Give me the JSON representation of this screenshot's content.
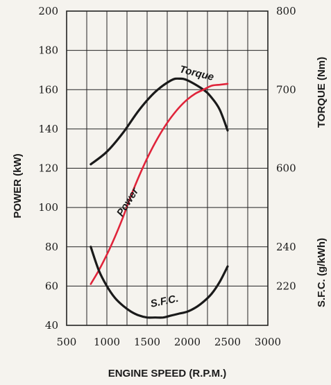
{
  "chart_data": {
    "type": "line",
    "xlabel": "ENGINE SPEED (R.P.M.)",
    "x_ticks": [
      "500",
      "1000",
      "1500",
      "2000",
      "2500",
      "3000"
    ],
    "xlim": [
      500,
      3000
    ],
    "y_left": {
      "label": "POWER (kW)",
      "ticks": [
        "40",
        "60",
        "80",
        "100",
        "120",
        "140",
        "160",
        "180",
        "200"
      ],
      "lim": [
        40,
        200
      ]
    },
    "y_right_top": {
      "label": "TORQUE (Nm)",
      "ticks": [
        "600",
        "700",
        "800"
      ]
    },
    "y_right_bottom": {
      "label": "S.F.C. (g/kWh)",
      "ticks": [
        "220",
        "240"
      ]
    },
    "grid": true,
    "series": [
      {
        "name": "Torque",
        "axis": "torque",
        "color": "#1a1a1a",
        "x": [
          800,
          1000,
          1200,
          1400,
          1600,
          1800,
          1900,
          2000,
          2200,
          2300,
          2400,
          2500
        ],
        "y": [
          605,
          621,
          645,
          674,
          697,
          712,
          714,
          712,
          700,
          690,
          675,
          648
        ]
      },
      {
        "name": "Power",
        "axis": "power",
        "color": "#e0243a",
        "x": [
          800,
          900,
          1000,
          1100,
          1200,
          1300,
          1400,
          1500,
          1600,
          1700,
          1800,
          1900,
          2000,
          2100,
          2200,
          2300,
          2400,
          2500
        ],
        "y": [
          61,
          68,
          76,
          85,
          95,
          106,
          116,
          125,
          133,
          140,
          146,
          151,
          155,
          158,
          160,
          162,
          162.5,
          163
        ]
      },
      {
        "name": "S.F.C.",
        "axis": "sfc",
        "color": "#1a1a1a",
        "x": [
          800,
          900,
          1000,
          1100,
          1200,
          1300,
          1400,
          1500,
          1600,
          1700,
          1800,
          1900,
          2000,
          2100,
          2200,
          2300,
          2400,
          2500
        ],
        "y": [
          240,
          228,
          220,
          214,
          210,
          207,
          205,
          204,
          204,
          204,
          205,
          206,
          207,
          209,
          212,
          216,
          222,
          230
        ]
      }
    ]
  }
}
